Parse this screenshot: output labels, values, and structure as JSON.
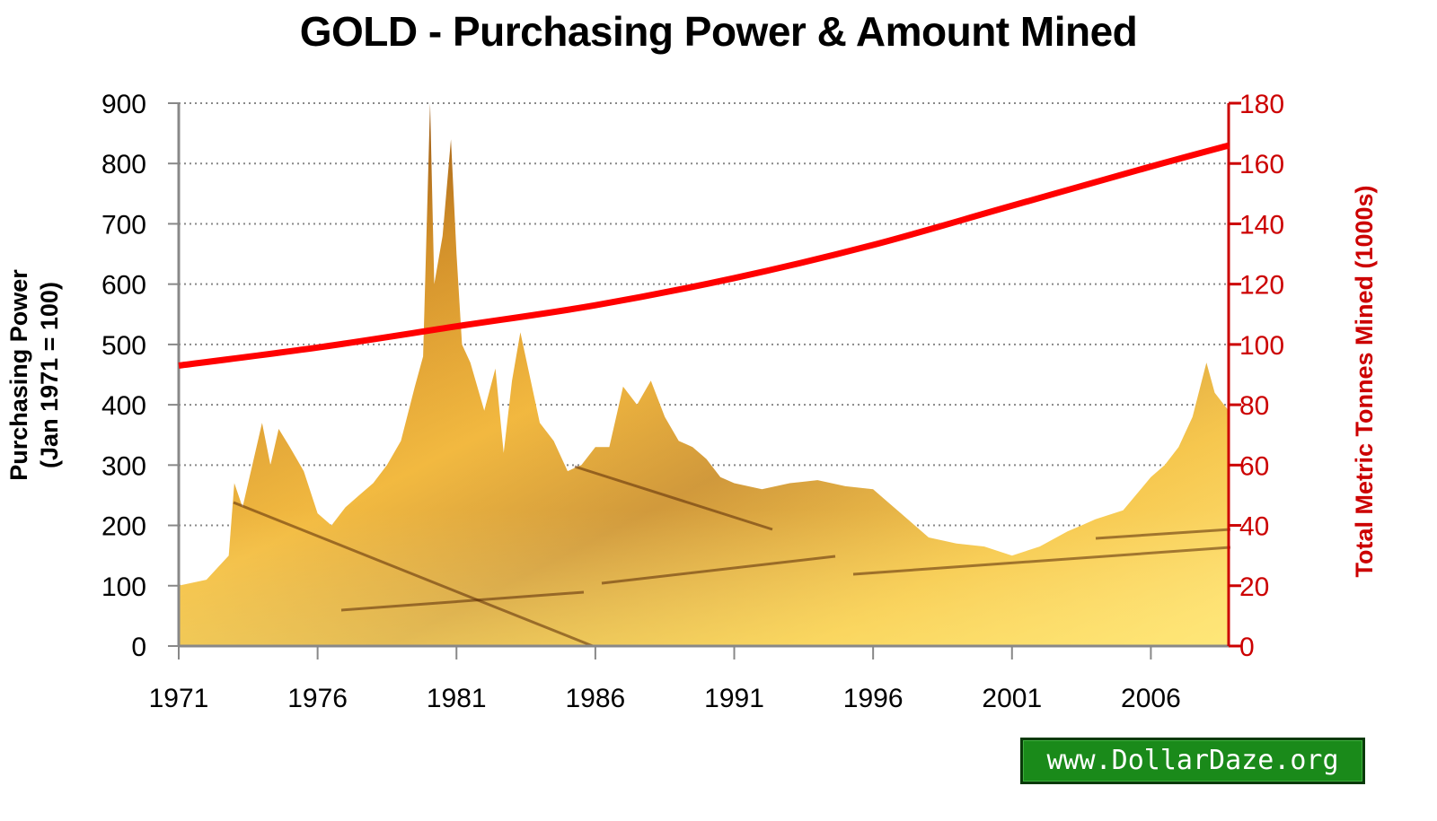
{
  "title": "GOLD - Purchasing Power & Amount Mined",
  "watermark": "www.DollarDaze.org",
  "colors": {
    "line": "#ff0000",
    "right_axis": "#cc0000",
    "area_light": "#ffd54a",
    "area_mid": "#e8a020",
    "area_dark": "#6a3208",
    "badge_bg": "#1a8a1a"
  },
  "axes": {
    "left": {
      "label_line1": "Purchasing Power",
      "label_line2": "(Jan 1971 = 100)",
      "ticks": [
        "0",
        "100",
        "200",
        "300",
        "400",
        "500",
        "600",
        "700",
        "800",
        "900"
      ]
    },
    "right": {
      "label": "Total Metric Tonnes Mined (1000s)",
      "ticks": [
        "0",
        "20",
        "40",
        "60",
        "80",
        "100",
        "120",
        "140",
        "160",
        "180"
      ]
    },
    "x": {
      "ticks": [
        "1971",
        "1976",
        "1981",
        "1986",
        "1991",
        "1996",
        "2001",
        "2006"
      ]
    }
  },
  "chart_data": {
    "type": "line",
    "title": "GOLD - Purchasing Power & Amount Mined",
    "xlabel": "",
    "ylabel": "Purchasing Power (Jan 1971 = 100)",
    "y2label": "Total Metric Tonnes Mined (1000s)",
    "ylim": [
      0,
      900
    ],
    "y2lim": [
      0,
      180
    ],
    "xlim": [
      1971,
      2008.8
    ],
    "grid": true,
    "legend": "none",
    "series": [
      {
        "name": "Purchasing Power (Jan 1971 = 100)",
        "type": "area",
        "axis": "left",
        "x": [
          1971,
          1972,
          1972.8,
          1973,
          1973.3,
          1974,
          1974.3,
          1974.6,
          1975,
          1975.5,
          1976,
          1976.5,
          1977,
          1977.5,
          1978,
          1978.5,
          1979,
          1979.5,
          1979.8,
          1980.05,
          1980.2,
          1980.5,
          1980.8,
          1981,
          1981.2,
          1981.5,
          1982,
          1982.4,
          1982.7,
          1983,
          1983.3,
          1984,
          1984.5,
          1985,
          1985.5,
          1986,
          1986.5,
          1987,
          1987.5,
          1988,
          1988.5,
          1989,
          1989.5,
          1990,
          1990.5,
          1991,
          1992,
          1993,
          1994,
          1995,
          1996,
          1996.5,
          1997,
          1998,
          1999,
          2000,
          2001,
          2002,
          2003,
          2003.5,
          2004,
          2005,
          2006,
          2006.5,
          2007,
          2007.5,
          2008,
          2008.3,
          2008.8
        ],
        "values": [
          100,
          110,
          150,
          270,
          230,
          370,
          300,
          360,
          330,
          290,
          220,
          200,
          230,
          250,
          270,
          300,
          340,
          430,
          480,
          900,
          600,
          680,
          840,
          650,
          500,
          470,
          390,
          460,
          320,
          440,
          520,
          370,
          340,
          290,
          300,
          330,
          330,
          430,
          400,
          440,
          380,
          340,
          330,
          310,
          280,
          270,
          260,
          270,
          275,
          265,
          260,
          240,
          220,
          180,
          170,
          165,
          150,
          165,
          190,
          200,
          210,
          225,
          280,
          300,
          330,
          380,
          470,
          420,
          390
        ]
      },
      {
        "name": "Total Metric Tonnes Mined (1000s)",
        "type": "line",
        "axis": "right",
        "x": [
          1971,
          1976,
          1981,
          1986,
          1991,
          1996,
          2001,
          2006,
          2008.8
        ],
        "values": [
          93,
          99,
          106,
          113,
          122,
          133,
          146,
          159,
          166
        ]
      }
    ]
  }
}
